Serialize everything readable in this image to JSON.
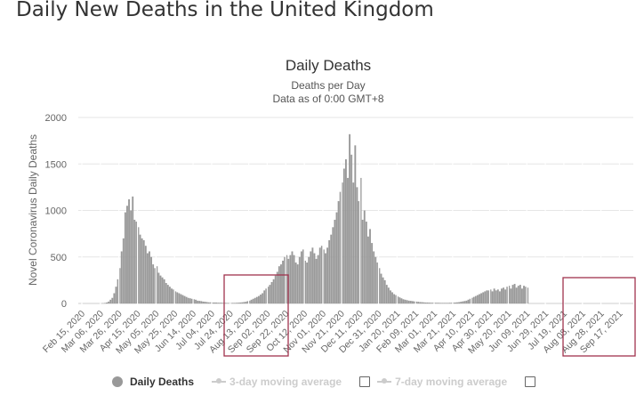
{
  "page": {
    "title": "Daily New Deaths in the United Kingdom"
  },
  "chart_data": {
    "type": "bar",
    "title": "Daily Deaths",
    "subtitle_lines": [
      "Deaths per Day",
      "Data as of 0:00 GMT+8"
    ],
    "xlabel": "",
    "ylabel": "Novel Coronavirus Daily Deaths",
    "ylim": [
      0,
      2000
    ],
    "yticks": [
      0,
      500,
      1000,
      1500,
      2000
    ],
    "grid": true,
    "x_start": "Feb 15, 2020",
    "x_step_days": 2,
    "xtick_labels": [
      "Feb 15, 2020",
      "Mar 06, 2020",
      "Mar 26, 2020",
      "Apr 15, 2020",
      "May 05, 2020",
      "May 25, 2020",
      "Jun 14, 2020",
      "Jul 04, 2020",
      "Jul 24, 2020",
      "Aug 13, 2020",
      "Sep 02, 2020",
      "Sep 22, 2020",
      "Oct 12, 2020",
      "Nov 01, 2020",
      "Nov 21, 2020",
      "Dec 11, 2020",
      "Dec 31, 2020",
      "Jan 20, 2021",
      "Feb 09, 2021",
      "Mar 01, 2021",
      "Mar 21, 2021",
      "Apr 10, 2021",
      "Apr 30, 2021",
      "May 20, 2021",
      "Jun 09, 2021",
      "Jun 29, 2021",
      "Jul 19, 2021",
      "Aug 08, 2021",
      "Aug 28, 2021",
      "Sep 17, 2021"
    ],
    "series": [
      {
        "name": "Daily Deaths",
        "color": "#999999",
        "values": [
          0,
          0,
          0,
          0,
          0,
          0,
          0,
          0,
          0,
          0,
          1,
          2,
          5,
          10,
          20,
          40,
          60,
          110,
          180,
          260,
          380,
          560,
          700,
          980,
          1050,
          1120,
          1000,
          1150,
          900,
          880,
          820,
          740,
          700,
          680,
          620,
          540,
          560,
          500,
          420,
          380,
          400,
          330,
          300,
          280,
          260,
          220,
          200,
          180,
          160,
          150,
          130,
          120,
          110,
          100,
          90,
          80,
          70,
          60,
          55,
          50,
          45,
          40,
          30,
          28,
          25,
          20,
          18,
          15,
          12,
          12,
          10,
          10,
          10,
          8,
          8,
          8,
          6,
          6,
          5,
          5,
          5,
          6,
          6,
          7,
          8,
          10,
          12,
          15,
          18,
          25,
          30,
          40,
          50,
          60,
          70,
          80,
          95,
          110,
          140,
          160,
          180,
          200,
          230,
          260,
          300,
          340,
          400,
          420,
          460,
          500,
          520,
          480,
          520,
          560,
          520,
          440,
          420,
          500,
          560,
          580,
          460,
          440,
          500,
          560,
          600,
          540,
          480,
          520,
          600,
          620,
          580,
          540,
          600,
          680,
          740,
          820,
          900,
          980,
          1100,
          1200,
          1300,
          1450,
          1550,
          1350,
          1820,
          1600,
          1300,
          1700,
          1250,
          1100,
          1350,
          900,
          1000,
          880,
          720,
          800,
          650,
          560,
          500,
          440,
          380,
          320,
          280,
          250,
          200,
          170,
          140,
          120,
          100,
          90,
          75,
          65,
          55,
          45,
          40,
          35,
          30,
          28,
          25,
          22,
          20,
          18,
          15,
          14,
          12,
          10,
          10,
          9,
          8,
          8,
          8,
          7,
          7,
          6,
          6,
          6,
          6,
          6,
          7,
          8,
          9,
          10,
          12,
          14,
          18,
          22,
          26,
          30,
          40,
          50,
          60,
          70,
          80,
          90,
          100,
          110,
          120,
          130,
          140,
          140,
          150,
          130,
          160,
          140,
          150,
          130,
          160,
          170,
          150,
          180,
          190,
          160,
          200,
          210,
          170,
          190,
          200,
          160,
          190,
          180,
          170
        ]
      }
    ],
    "legend": {
      "position": "bottom",
      "entries": [
        {
          "label": "Daily Deaths",
          "enabled": true
        },
        {
          "label": "3-day moving average",
          "enabled": false
        },
        {
          "label": "7-day moving average",
          "enabled": false
        }
      ]
    },
    "annotations": [
      {
        "type": "highlight-box",
        "color": "#a0334d",
        "x_range": [
          "Aug 10, 2020",
          "Oct 14, 2020"
        ]
      },
      {
        "type": "highlight-box",
        "color": "#a0334d",
        "x_range": [
          "Aug 05, 2021",
          "Sep 30, 2021"
        ]
      }
    ]
  }
}
